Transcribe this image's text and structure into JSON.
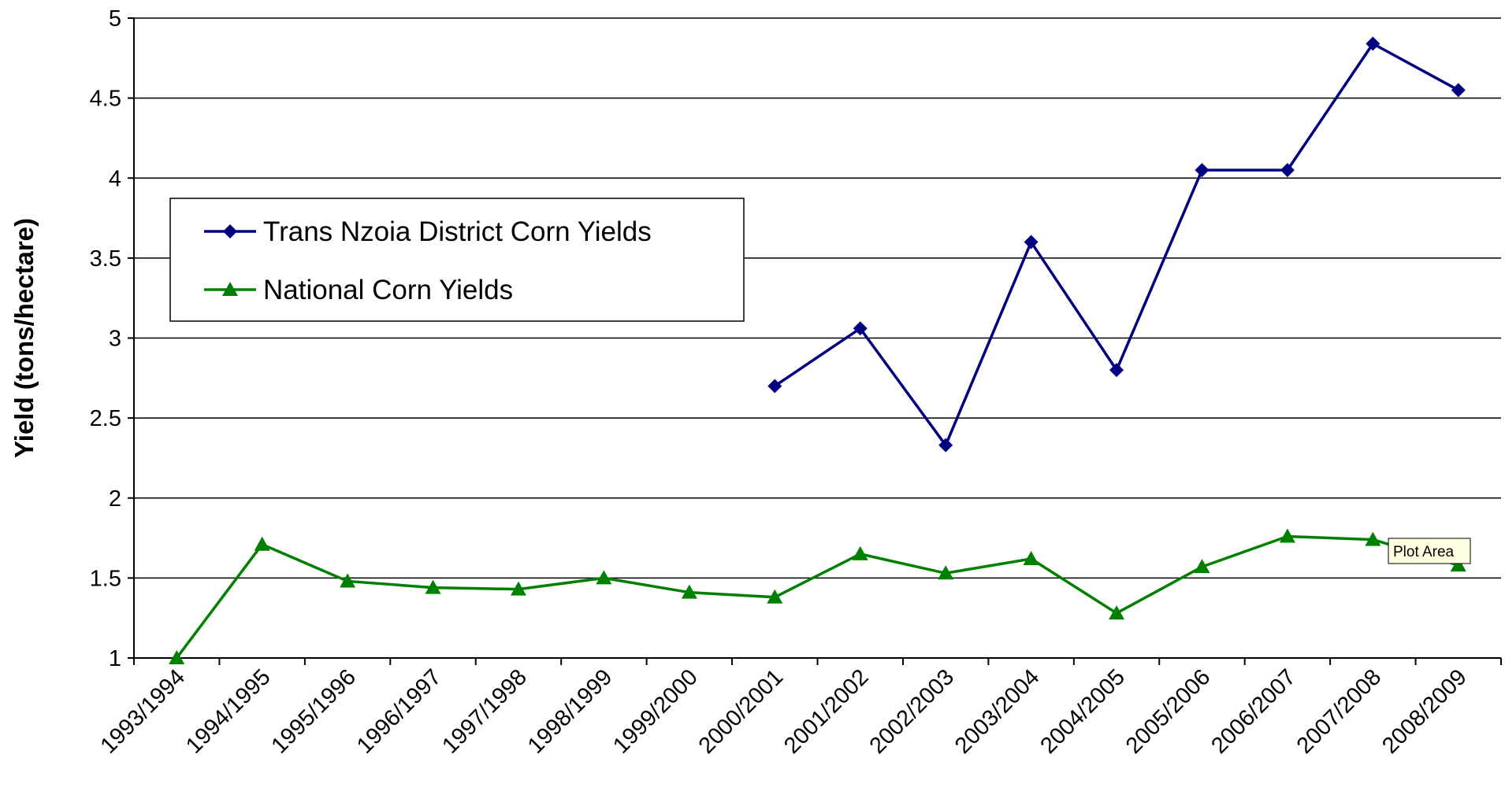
{
  "chart_data": {
    "type": "line",
    "categories": [
      "1993/1994",
      "1994/1995",
      "1995/1996",
      "1996/1997",
      "1997/1998",
      "1998/1999",
      "1999/2000",
      "2000/2001",
      "2001/2002",
      "2002/2003",
      "2003/2004",
      "2004/2005",
      "2005/2006",
      "2006/2007",
      "2007/2008",
      "2008/2009"
    ],
    "ylabel": "Yield (tons/hectare)",
    "ylim": [
      1,
      5
    ],
    "yticks": [
      1,
      1.5,
      2,
      2.5,
      3,
      3.5,
      4,
      4.5,
      5
    ],
    "ytick_labels": [
      "1",
      "1.5",
      "2",
      "2.5",
      "3",
      "3.5",
      "4",
      "4.5",
      "5"
    ],
    "grid": true,
    "legend_position": "top-left",
    "series": [
      {
        "name": "Trans Nzoia District Corn Yields",
        "color": "#000080",
        "marker": "diamond",
        "values": [
          null,
          null,
          null,
          null,
          null,
          null,
          null,
          2.7,
          3.06,
          2.33,
          3.6,
          2.8,
          4.05,
          4.05,
          4.84,
          4.55
        ]
      },
      {
        "name": "National Corn Yields",
        "color": "#008000",
        "marker": "triangle",
        "values": [
          1.0,
          1.71,
          1.48,
          1.44,
          1.43,
          1.5,
          1.41,
          1.38,
          1.65,
          1.53,
          1.62,
          1.28,
          1.57,
          1.76,
          1.74,
          1.58
        ]
      }
    ]
  },
  "tooltip": {
    "label": "Plot Area"
  }
}
